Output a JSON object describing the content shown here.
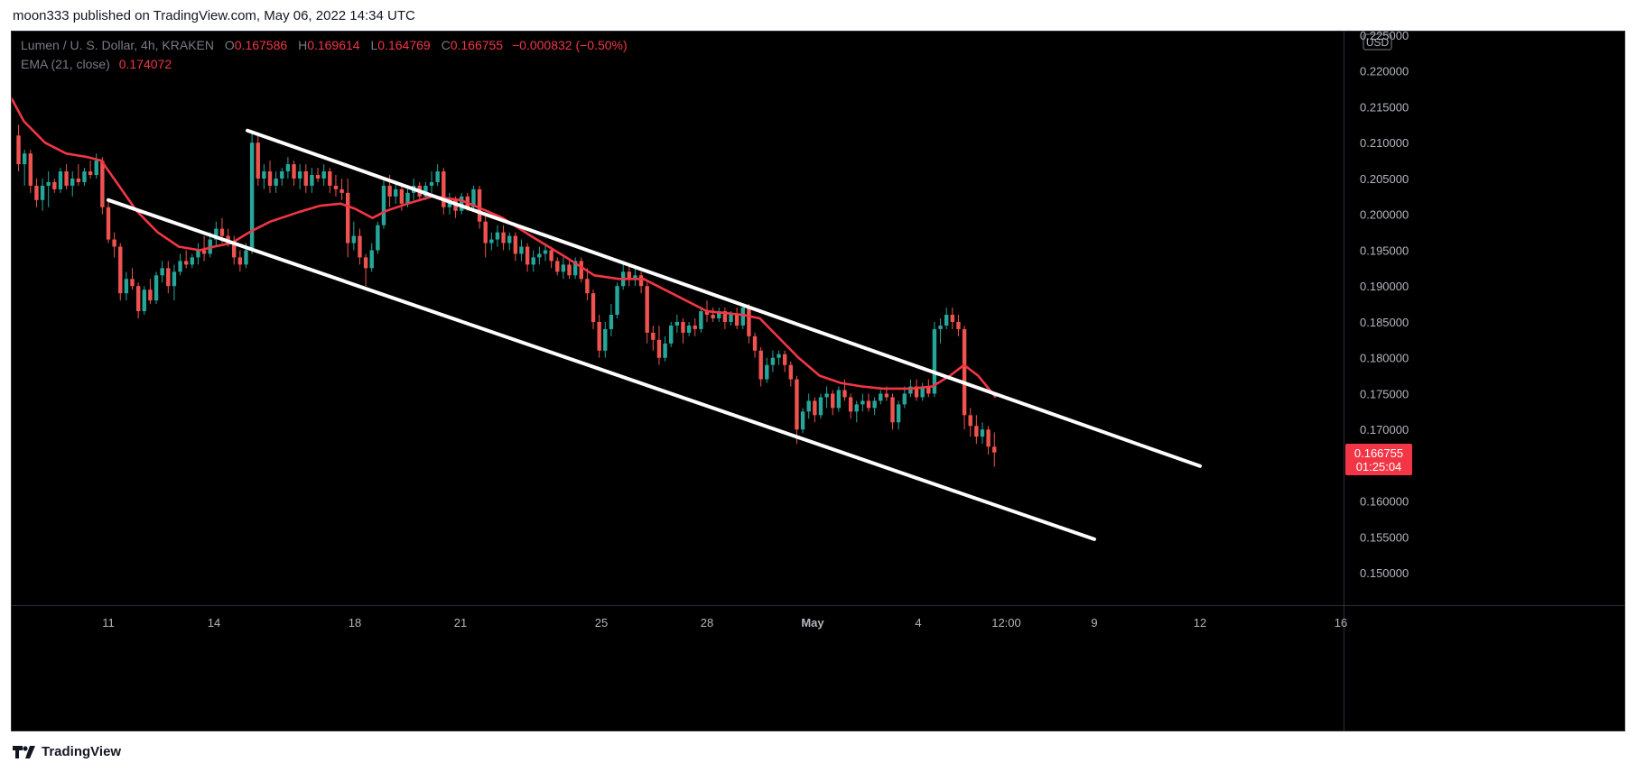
{
  "header": {
    "publisher": "moon333 published on TradingView.com, May 06, 2022 14:34 UTC"
  },
  "legend": {
    "symbol": "Lumen / U. S. Dollar, 4h, KRAKEN",
    "o_label": "O",
    "o": "0.167586",
    "h_label": "H",
    "h": "0.169614",
    "l_label": "L",
    "l": "0.164769",
    "c_label": "C",
    "c": "0.166755",
    "change": "−0.000832 (−0.50%)",
    "ema_label": "EMA (21, close)",
    "ema": "0.174072"
  },
  "footer": {
    "brand": "TradingView"
  },
  "colors": {
    "up": "#26a69a",
    "down": "#ef5350",
    "ema": "#f23645",
    "line": "#ffffff",
    "background": "#000000"
  },
  "chart_data": {
    "type": "candlestick",
    "currency": "USD",
    "y_ticks": [
      "0.225000",
      "0.220000",
      "0.215000",
      "0.210000",
      "0.205000",
      "0.200000",
      "0.195000",
      "0.190000",
      "0.185000",
      "0.180000",
      "0.175000",
      "0.170000",
      "0.165000",
      "0.160000",
      "0.155000",
      "0.150000"
    ],
    "ylim": [
      0.1455,
      0.2255
    ],
    "x_ticks": [
      {
        "label": "11",
        "day": 11
      },
      {
        "label": "14",
        "day": 14
      },
      {
        "label": "18",
        "day": 18
      },
      {
        "label": "21",
        "day": 21
      },
      {
        "label": "25",
        "day": 25
      },
      {
        "label": "28",
        "day": 28
      },
      {
        "label": "May",
        "day": 31
      },
      {
        "label": "4",
        "day": 34
      },
      {
        "label": "12:00",
        "day": 36.5
      },
      {
        "label": "9",
        "day": 39
      },
      {
        "label": "12",
        "day": 42
      },
      {
        "label": "16",
        "day": 46
      }
    ],
    "last_price": {
      "value": "0.166755",
      "countdown": "01:25:04"
    },
    "ema_series": [
      [
        8.25,
        0.2162
      ],
      [
        8.6,
        0.213
      ],
      [
        9.2,
        0.21
      ],
      [
        9.8,
        0.2085
      ],
      [
        10.4,
        0.208
      ],
      [
        10.8,
        0.2075
      ],
      [
        11.3,
        0.204
      ],
      [
        11.8,
        0.2005
      ],
      [
        12.4,
        0.1975
      ],
      [
        13.0,
        0.1955
      ],
      [
        13.6,
        0.195
      ],
      [
        14.0,
        0.1955
      ],
      [
        14.5,
        0.196
      ],
      [
        15.0,
        0.1975
      ],
      [
        15.6,
        0.199
      ],
      [
        16.4,
        0.2003
      ],
      [
        17.0,
        0.2012
      ],
      [
        17.6,
        0.2015
      ],
      [
        18.0,
        0.2008
      ],
      [
        18.5,
        0.1995
      ],
      [
        18.9,
        0.2005
      ],
      [
        19.5,
        0.2015
      ],
      [
        20.2,
        0.2025
      ],
      [
        21.0,
        0.202
      ],
      [
        21.5,
        0.201
      ],
      [
        22.2,
        0.1995
      ],
      [
        23.0,
        0.197
      ],
      [
        24.0,
        0.194
      ],
      [
        24.8,
        0.1915
      ],
      [
        25.5,
        0.191
      ],
      [
        26.2,
        0.191
      ],
      [
        27.0,
        0.189
      ],
      [
        28.0,
        0.1865
      ],
      [
        29.0,
        0.186
      ],
      [
        29.5,
        0.1855
      ],
      [
        30.0,
        0.183
      ],
      [
        30.6,
        0.18
      ],
      [
        31.2,
        0.1775
      ],
      [
        31.8,
        0.1765
      ],
      [
        32.4,
        0.176
      ],
      [
        33.0,
        0.1757
      ],
      [
        33.8,
        0.1757
      ],
      [
        34.4,
        0.176
      ],
      [
        34.9,
        0.1775
      ],
      [
        35.3,
        0.179
      ],
      [
        35.7,
        0.1775
      ],
      [
        36.2,
        0.1745
      ]
    ],
    "channel_upper": [
      [
        14.95,
        0.2117
      ],
      [
        42.0,
        0.1649
      ]
    ],
    "channel_lower": [
      [
        11.0,
        0.202
      ],
      [
        39.0,
        0.1547
      ]
    ],
    "candles": [
      [
        8.45,
        0.211,
        0.2125,
        0.206,
        0.207
      ],
      [
        8.62,
        0.207,
        0.209,
        0.204,
        0.2085
      ],
      [
        8.79,
        0.2085,
        0.209,
        0.203,
        0.204
      ],
      [
        8.96,
        0.204,
        0.205,
        0.201,
        0.202
      ],
      [
        9.13,
        0.202,
        0.205,
        0.2005,
        0.204
      ],
      [
        9.3,
        0.204,
        0.206,
        0.201,
        0.2045
      ],
      [
        9.47,
        0.2045,
        0.205,
        0.203,
        0.2035
      ],
      [
        9.64,
        0.2035,
        0.2065,
        0.203,
        0.206
      ],
      [
        9.81,
        0.206,
        0.207,
        0.2035,
        0.204
      ],
      [
        9.98,
        0.204,
        0.206,
        0.2025,
        0.205
      ],
      [
        10.15,
        0.205,
        0.207,
        0.204,
        0.2045
      ],
      [
        10.32,
        0.2045,
        0.2065,
        0.204,
        0.206
      ],
      [
        10.49,
        0.206,
        0.2075,
        0.205,
        0.2055
      ],
      [
        10.66,
        0.2055,
        0.2085,
        0.205,
        0.2075
      ],
      [
        10.83,
        0.2075,
        0.208,
        0.2,
        0.201
      ],
      [
        11.0,
        0.201,
        0.202,
        0.196,
        0.1965
      ],
      [
        11.17,
        0.1965,
        0.1975,
        0.194,
        0.1955
      ],
      [
        11.34,
        0.1955,
        0.196,
        0.188,
        0.189
      ],
      [
        11.51,
        0.189,
        0.192,
        0.188,
        0.191
      ],
      [
        11.68,
        0.191,
        0.1925,
        0.1895,
        0.19
      ],
      [
        11.85,
        0.19,
        0.1905,
        0.1855,
        0.1865
      ],
      [
        12.02,
        0.1865,
        0.19,
        0.186,
        0.1895
      ],
      [
        12.19,
        0.1895,
        0.191,
        0.1875,
        0.188
      ],
      [
        12.36,
        0.188,
        0.192,
        0.1875,
        0.1915
      ],
      [
        12.53,
        0.1915,
        0.1935,
        0.1905,
        0.1925
      ],
      [
        12.7,
        0.1925,
        0.1935,
        0.189,
        0.19
      ],
      [
        12.87,
        0.19,
        0.193,
        0.188,
        0.192
      ],
      [
        13.04,
        0.192,
        0.1945,
        0.1915,
        0.1935
      ],
      [
        13.21,
        0.1935,
        0.195,
        0.1925,
        0.193
      ],
      [
        13.38,
        0.193,
        0.1945,
        0.1925,
        0.194
      ],
      [
        13.55,
        0.194,
        0.196,
        0.193,
        0.195
      ],
      [
        13.72,
        0.195,
        0.197,
        0.1935,
        0.1945
      ],
      [
        13.89,
        0.1945,
        0.1975,
        0.194,
        0.1965
      ],
      [
        14.06,
        0.1965,
        0.199,
        0.1955,
        0.198
      ],
      [
        14.23,
        0.198,
        0.1995,
        0.196,
        0.197
      ],
      [
        14.4,
        0.197,
        0.198,
        0.1955,
        0.196
      ],
      [
        14.57,
        0.196,
        0.197,
        0.193,
        0.194
      ],
      [
        14.74,
        0.194,
        0.195,
        0.192,
        0.193
      ],
      [
        14.91,
        0.193,
        0.196,
        0.1925,
        0.195
      ],
      [
        15.08,
        0.195,
        0.2115,
        0.1945,
        0.21
      ],
      [
        15.25,
        0.21,
        0.211,
        0.204,
        0.205
      ],
      [
        15.42,
        0.205,
        0.207,
        0.2035,
        0.206
      ],
      [
        15.59,
        0.206,
        0.2075,
        0.203,
        0.204
      ],
      [
        15.76,
        0.204,
        0.206,
        0.203,
        0.205
      ],
      [
        15.93,
        0.205,
        0.2065,
        0.204,
        0.206
      ],
      [
        16.1,
        0.206,
        0.208,
        0.205,
        0.207
      ],
      [
        16.27,
        0.207,
        0.2075,
        0.204,
        0.205
      ],
      [
        16.44,
        0.205,
        0.207,
        0.2035,
        0.206
      ],
      [
        16.61,
        0.206,
        0.207,
        0.203,
        0.204
      ],
      [
        16.78,
        0.204,
        0.2065,
        0.203,
        0.2055
      ],
      [
        16.95,
        0.2055,
        0.2065,
        0.2045,
        0.205
      ],
      [
        17.12,
        0.205,
        0.207,
        0.204,
        0.206
      ],
      [
        17.29,
        0.206,
        0.2065,
        0.203,
        0.204
      ],
      [
        17.46,
        0.204,
        0.2055,
        0.2025,
        0.2035
      ],
      [
        17.63,
        0.2035,
        0.205,
        0.202,
        0.203
      ],
      [
        17.8,
        0.203,
        0.205,
        0.194,
        0.196
      ],
      [
        17.97,
        0.196,
        0.199,
        0.195,
        0.197
      ],
      [
        18.14,
        0.197,
        0.198,
        0.193,
        0.194
      ],
      [
        18.31,
        0.194,
        0.1945,
        0.19,
        0.1925
      ],
      [
        18.48,
        0.1925,
        0.196,
        0.192,
        0.195
      ],
      [
        18.65,
        0.195,
        0.199,
        0.1945,
        0.1985
      ],
      [
        18.82,
        0.1985,
        0.205,
        0.198,
        0.204
      ],
      [
        18.99,
        0.204,
        0.2055,
        0.201,
        0.2025
      ],
      [
        19.16,
        0.2025,
        0.2045,
        0.2015,
        0.2035
      ],
      [
        19.33,
        0.2035,
        0.204,
        0.2005,
        0.2015
      ],
      [
        19.5,
        0.2015,
        0.204,
        0.201,
        0.203
      ],
      [
        19.67,
        0.203,
        0.205,
        0.202,
        0.204
      ],
      [
        19.84,
        0.204,
        0.2045,
        0.202,
        0.2025
      ],
      [
        20.01,
        0.2025,
        0.2045,
        0.202,
        0.204
      ],
      [
        20.18,
        0.204,
        0.206,
        0.203,
        0.2045
      ],
      [
        20.35,
        0.2045,
        0.207,
        0.204,
        0.206
      ],
      [
        20.52,
        0.206,
        0.2065,
        0.2,
        0.201
      ],
      [
        20.69,
        0.201,
        0.203,
        0.2,
        0.202
      ],
      [
        20.86,
        0.202,
        0.2025,
        0.1995,
        0.2005
      ],
      [
        21.03,
        0.2005,
        0.203,
        0.2,
        0.2025
      ],
      [
        21.2,
        0.2025,
        0.203,
        0.2005,
        0.201
      ],
      [
        21.37,
        0.201,
        0.204,
        0.2005,
        0.2035
      ],
      [
        21.54,
        0.2035,
        0.204,
        0.198,
        0.199
      ],
      [
        21.71,
        0.199,
        0.2,
        0.194,
        0.196
      ],
      [
        21.88,
        0.196,
        0.1975,
        0.195,
        0.1965
      ],
      [
        22.05,
        0.1965,
        0.1985,
        0.1955,
        0.1975
      ],
      [
        22.22,
        0.1975,
        0.1985,
        0.195,
        0.196
      ],
      [
        22.39,
        0.196,
        0.1975,
        0.195,
        0.197
      ],
      [
        22.56,
        0.197,
        0.1975,
        0.1935,
        0.1945
      ],
      [
        22.73,
        0.1945,
        0.1965,
        0.1935,
        0.1955
      ],
      [
        22.9,
        0.1955,
        0.196,
        0.192,
        0.193
      ],
      [
        23.07,
        0.193,
        0.195,
        0.192,
        0.194
      ],
      [
        23.24,
        0.194,
        0.1955,
        0.193,
        0.1945
      ],
      [
        23.41,
        0.1945,
        0.196,
        0.1935,
        0.195
      ],
      [
        23.58,
        0.195,
        0.1955,
        0.1925,
        0.1935
      ],
      [
        23.75,
        0.1935,
        0.194,
        0.1915,
        0.192
      ],
      [
        23.92,
        0.192,
        0.194,
        0.191,
        0.193
      ],
      [
        24.09,
        0.193,
        0.1935,
        0.191,
        0.1915
      ],
      [
        24.26,
        0.1915,
        0.194,
        0.191,
        0.1935
      ],
      [
        24.43,
        0.1935,
        0.194,
        0.1905,
        0.191
      ],
      [
        24.6,
        0.191,
        0.1925,
        0.188,
        0.189
      ],
      [
        24.77,
        0.189,
        0.1895,
        0.184,
        0.185
      ],
      [
        24.94,
        0.185,
        0.186,
        0.18,
        0.181
      ],
      [
        25.11,
        0.181,
        0.185,
        0.18,
        0.184
      ],
      [
        25.28,
        0.184,
        0.1875,
        0.183,
        0.186
      ],
      [
        25.45,
        0.186,
        0.1905,
        0.1855,
        0.19
      ],
      [
        25.62,
        0.19,
        0.1935,
        0.1895,
        0.192
      ],
      [
        25.79,
        0.192,
        0.193,
        0.19,
        0.191
      ],
      [
        25.96,
        0.191,
        0.1925,
        0.19,
        0.1915
      ],
      [
        26.13,
        0.1915,
        0.192,
        0.189,
        0.19
      ],
      [
        26.3,
        0.19,
        0.1905,
        0.182,
        0.1835
      ],
      [
        26.47,
        0.1835,
        0.1845,
        0.181,
        0.1825
      ],
      [
        26.64,
        0.1825,
        0.1845,
        0.179,
        0.18
      ],
      [
        26.81,
        0.18,
        0.183,
        0.1795,
        0.182
      ],
      [
        26.98,
        0.182,
        0.185,
        0.1815,
        0.1845
      ],
      [
        27.15,
        0.1845,
        0.186,
        0.1835,
        0.185
      ],
      [
        27.32,
        0.185,
        0.1855,
        0.182,
        0.1835
      ],
      [
        27.49,
        0.1835,
        0.185,
        0.183,
        0.1845
      ],
      [
        27.66,
        0.1845,
        0.1855,
        0.183,
        0.184
      ],
      [
        27.83,
        0.184,
        0.187,
        0.1835,
        0.1865
      ],
      [
        28.0,
        0.1865,
        0.188,
        0.185,
        0.186
      ],
      [
        28.17,
        0.186,
        0.187,
        0.185,
        0.1855
      ],
      [
        28.34,
        0.1855,
        0.187,
        0.185,
        0.1865
      ],
      [
        28.51,
        0.1865,
        0.187,
        0.184,
        0.185
      ],
      [
        28.68,
        0.185,
        0.1865,
        0.1845,
        0.186
      ],
      [
        28.85,
        0.186,
        0.187,
        0.184,
        0.1845
      ],
      [
        29.02,
        0.1845,
        0.1875,
        0.184,
        0.187
      ],
      [
        29.19,
        0.187,
        0.1875,
        0.182,
        0.183
      ],
      [
        29.36,
        0.183,
        0.1835,
        0.18,
        0.181
      ],
      [
        29.53,
        0.181,
        0.1815,
        0.176,
        0.177
      ],
      [
        29.7,
        0.177,
        0.18,
        0.1765,
        0.179
      ],
      [
        29.87,
        0.179,
        0.181,
        0.178,
        0.18
      ],
      [
        30.04,
        0.18,
        0.181,
        0.179,
        0.1805
      ],
      [
        30.21,
        0.1805,
        0.181,
        0.178,
        0.179
      ],
      [
        30.38,
        0.179,
        0.1795,
        0.176,
        0.177
      ],
      [
        30.55,
        0.177,
        0.1775,
        0.168,
        0.17
      ],
      [
        30.72,
        0.17,
        0.173,
        0.1695,
        0.1725
      ],
      [
        30.89,
        0.1725,
        0.175,
        0.1715,
        0.174
      ],
      [
        31.06,
        0.174,
        0.1745,
        0.171,
        0.172
      ],
      [
        31.23,
        0.172,
        0.175,
        0.1715,
        0.1745
      ],
      [
        31.4,
        0.1745,
        0.176,
        0.173,
        0.175
      ],
      [
        31.57,
        0.175,
        0.1755,
        0.172,
        0.173
      ],
      [
        31.74,
        0.173,
        0.176,
        0.1725,
        0.1755
      ],
      [
        31.91,
        0.1755,
        0.177,
        0.174,
        0.1745
      ],
      [
        32.08,
        0.1745,
        0.175,
        0.1715,
        0.1725
      ],
      [
        32.25,
        0.1725,
        0.174,
        0.171,
        0.1735
      ],
      [
        32.42,
        0.1735,
        0.175,
        0.1725,
        0.174
      ],
      [
        32.59,
        0.174,
        0.175,
        0.1725,
        0.173
      ],
      [
        32.76,
        0.173,
        0.1745,
        0.172,
        0.174
      ],
      [
        32.93,
        0.174,
        0.1755,
        0.1735,
        0.175
      ],
      [
        33.1,
        0.175,
        0.176,
        0.174,
        0.1745
      ],
      [
        33.27,
        0.1745,
        0.175,
        0.17,
        0.171
      ],
      [
        33.44,
        0.171,
        0.174,
        0.17,
        0.1735
      ],
      [
        33.61,
        0.1735,
        0.176,
        0.173,
        0.175
      ],
      [
        33.78,
        0.175,
        0.177,
        0.1745,
        0.176
      ],
      [
        33.95,
        0.176,
        0.177,
        0.174,
        0.1745
      ],
      [
        34.12,
        0.1745,
        0.1765,
        0.174,
        0.176
      ],
      [
        34.29,
        0.176,
        0.177,
        0.1745,
        0.175
      ],
      [
        34.46,
        0.175,
        0.185,
        0.1745,
        0.184
      ],
      [
        34.63,
        0.184,
        0.1855,
        0.182,
        0.1845
      ],
      [
        34.8,
        0.1845,
        0.187,
        0.184,
        0.186
      ],
      [
        34.97,
        0.186,
        0.187,
        0.184,
        0.185
      ],
      [
        35.14,
        0.185,
        0.186,
        0.183,
        0.184
      ],
      [
        35.31,
        0.184,
        0.1845,
        0.17,
        0.172
      ],
      [
        35.48,
        0.172,
        0.173,
        0.169,
        0.1705
      ],
      [
        35.65,
        0.1705,
        0.172,
        0.168,
        0.169
      ],
      [
        35.82,
        0.169,
        0.171,
        0.168,
        0.17
      ],
      [
        35.99,
        0.17,
        0.1705,
        0.1665,
        0.1676
      ],
      [
        36.16,
        0.1676,
        0.1696,
        0.1648,
        0.1668
      ]
    ]
  }
}
